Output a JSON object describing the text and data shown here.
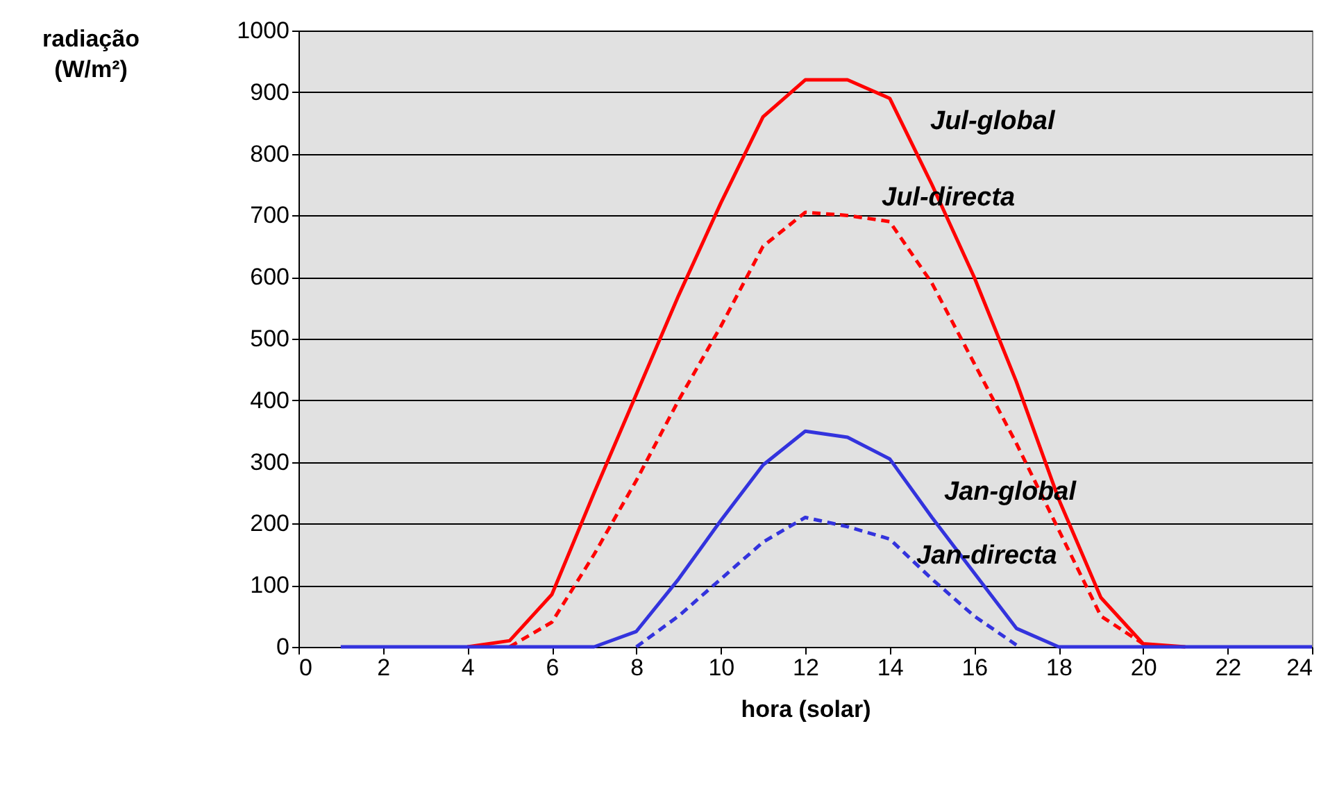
{
  "chart_data": {
    "type": "line",
    "xlabel": "hora (solar)",
    "ylabel": "radiação (W/m²)",
    "x": [
      1,
      2,
      3,
      4,
      5,
      6,
      7,
      8,
      9,
      10,
      11,
      12,
      13,
      14,
      15,
      16,
      17,
      18,
      19,
      20,
      21,
      22,
      23,
      24
    ],
    "series": [
      {
        "name": "Jul-global",
        "color": "#ff0000",
        "line_style": "solid",
        "values": [
          null,
          null,
          null,
          0,
          10,
          85,
          250,
          410,
          570,
          720,
          860,
          920,
          920,
          890,
          750,
          600,
          430,
          240,
          80,
          5,
          0,
          null,
          null,
          null
        ]
      },
      {
        "name": "Jul-directa",
        "color": "#ff0000",
        "line_style": "dashed",
        "values": [
          null,
          null,
          null,
          null,
          0,
          40,
          150,
          270,
          400,
          520,
          650,
          705,
          700,
          690,
          590,
          460,
          330,
          190,
          50,
          5,
          null,
          null,
          null,
          null
        ]
      },
      {
        "name": "Jan-global",
        "color": "#3333dd",
        "line_style": "solid",
        "values": [
          0,
          0,
          0,
          0,
          0,
          0,
          0,
          25,
          110,
          205,
          295,
          350,
          340,
          305,
          210,
          120,
          30,
          0,
          0,
          0,
          0,
          0,
          0,
          0
        ]
      },
      {
        "name": "Jan-directa",
        "color": "#3333dd",
        "line_style": "dashed",
        "values": [
          null,
          null,
          null,
          null,
          null,
          null,
          null,
          0,
          50,
          110,
          170,
          210,
          195,
          175,
          110,
          50,
          3,
          null,
          null,
          null,
          null,
          null,
          null,
          null
        ]
      }
    ],
    "xlim": [
      0,
      24
    ],
    "xticks": [
      0,
      2,
      4,
      6,
      8,
      10,
      12,
      14,
      16,
      18,
      20,
      22,
      24
    ],
    "ylim": [
      0,
      1000
    ],
    "yticks": [
      0,
      100,
      200,
      300,
      400,
      500,
      600,
      700,
      800,
      900,
      1000
    ],
    "grid": "y"
  }
}
